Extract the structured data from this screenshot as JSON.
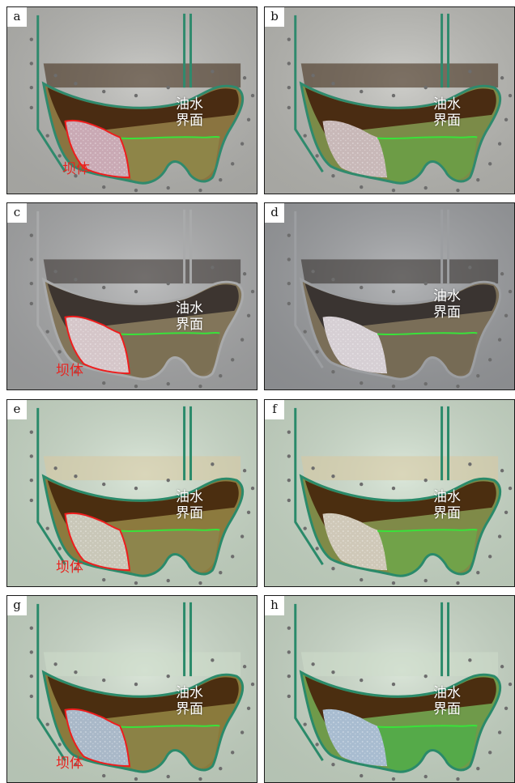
{
  "figure": {
    "interface_label_line1": "油水",
    "interface_label_line2": "界面",
    "dam_label": "坝体",
    "panels": [
      {
        "id": "a",
        "tag": "a",
        "background": "#b9b9b5",
        "oil": "#4a2c12",
        "oil_top": "#3a2410",
        "fill": "#8a7440",
        "dam_fill": "#c9a9b4",
        "tube": "#2f8a6d",
        "show_dam_outline": true,
        "show_dam_label": true,
        "water": "#8f8a4a"
      },
      {
        "id": "b",
        "tag": "b",
        "background": "#bdbdb8",
        "oil": "#4a2c12",
        "oil_top": "#3a2410",
        "fill": "#7b8b48",
        "dam_fill": "#c8b8b8",
        "tube": "#2f8a6d",
        "show_dam_outline": false,
        "show_dam_label": false,
        "water": "#6aa046"
      },
      {
        "id": "c",
        "tag": "c",
        "background": "#a9aaab",
        "oil": "#3d3530",
        "oil_top": "#332c28",
        "fill": "#82755a",
        "dam_fill": "#d5c6c9",
        "tube": "#a9aaab",
        "show_dam_outline": true,
        "show_dam_label": true,
        "water": "#7a6f52"
      },
      {
        "id": "d",
        "tag": "d",
        "background": "#9c9ea1",
        "oil": "#3a3431",
        "oil_top": "#302a27",
        "fill": "#7a6e58",
        "dam_fill": "#d6cfd4",
        "tube": "#9c9ea1",
        "show_dam_outline": false,
        "show_dam_label": false,
        "water": "#756a55"
      },
      {
        "id": "e",
        "tag": "e",
        "background": "#cfdfcd",
        "oil": "#4b2e10",
        "oil_top": "#d8c9a0",
        "fill": "#8c7a3e",
        "dam_fill": "#c9c7b8",
        "tube": "#2a8a6a",
        "show_dam_outline": true,
        "show_dam_label": true,
        "water": "#8d8850"
      },
      {
        "id": "f",
        "tag": "f",
        "background": "#cfdfcd",
        "oil": "#4b2e10",
        "oil_top": "#d8c9a0",
        "fill": "#7f8a48",
        "dam_fill": "#cfc8b8",
        "tube": "#2a8a6a",
        "show_dam_outline": false,
        "show_dam_label": false,
        "water": "#6ea84a"
      },
      {
        "id": "g",
        "tag": "g",
        "background": "#cddccb",
        "oil": "#4b2e10",
        "oil_top": "#cddccb",
        "fill": "#8a7a3c",
        "dam_fill": "#a9b8c8",
        "tube": "#2a8a6a",
        "show_dam_outline": true,
        "show_dam_label": true,
        "water": "#8b8448"
      },
      {
        "id": "h",
        "tag": "h",
        "background": "#cddccb",
        "oil": "#4b2e10",
        "oil_top": "#cddccb",
        "fill": "#6f9a4a",
        "dam_fill": "#a8bcd0",
        "tube": "#2a8a6a",
        "show_dam_outline": false,
        "show_dam_label": false,
        "water": "#4fae48"
      }
    ]
  }
}
